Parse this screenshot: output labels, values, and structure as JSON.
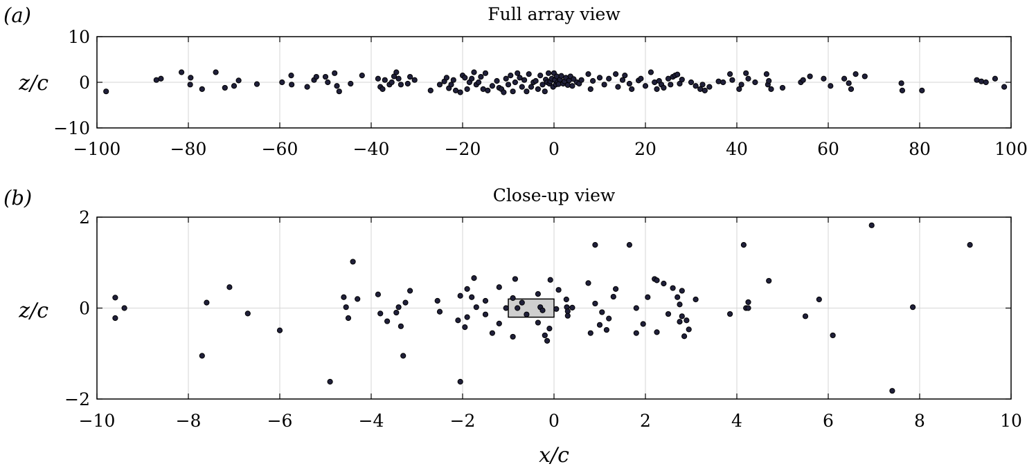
{
  "chart_data": [
    {
      "type": "scatter",
      "panel_label": "(a)",
      "title": "Full array view",
      "xlabel": "",
      "ylabel": "z/c",
      "xlim": [
        -100,
        100
      ],
      "ylim": [
        -10,
        10
      ],
      "x_ticks": [
        -100,
        -80,
        -60,
        -40,
        -20,
        0,
        20,
        40,
        60,
        80,
        100
      ],
      "y_ticks": [
        -10,
        0,
        10
      ],
      "x_tick_labels": [
        "−100",
        "−80",
        "−60",
        "−40",
        "−20",
        "0",
        "20",
        "40",
        "60",
        "80",
        "100"
      ],
      "y_tick_labels": [
        "−10",
        "0",
        "10"
      ],
      "grid": true,
      "point_color": "#20203a",
      "points": [
        [
          -98,
          -2
        ],
        [
          -87,
          0.5
        ],
        [
          -86,
          0.8
        ],
        [
          -81.5,
          2.2
        ],
        [
          -79.5,
          1
        ],
        [
          -79.6,
          -0.5
        ],
        [
          -77,
          -1.5
        ],
        [
          -74,
          2.2
        ],
        [
          -72,
          -1.2
        ],
        [
          -70,
          -0.8
        ],
        [
          -69,
          0.4
        ],
        [
          -65,
          -0.4
        ],
        [
          -59.5,
          0
        ],
        [
          -57.5,
          1.5
        ],
        [
          -57.4,
          -0.5
        ],
        [
          -54,
          -1
        ],
        [
          -52.5,
          0.5
        ],
        [
          -52,
          1.2
        ],
        [
          -50,
          1.2
        ],
        [
          -49.5,
          0
        ],
        [
          -48,
          2
        ],
        [
          -47.5,
          -0.8
        ],
        [
          -47,
          -2
        ],
        [
          -44.5,
          -0.3
        ],
        [
          -42,
          1.5
        ],
        [
          -38.5,
          0.8
        ],
        [
          -38,
          -1
        ],
        [
          -37.5,
          -1.5
        ],
        [
          -37,
          0.5
        ],
        [
          -36,
          -0.5
        ],
        [
          -35.5,
          0
        ],
        [
          -35,
          1.3
        ],
        [
          -34.5,
          2.2
        ],
        [
          -34,
          0.8
        ],
        [
          -33.5,
          -0.5
        ],
        [
          -32,
          -0.3
        ],
        [
          -31.5,
          1.2
        ],
        [
          -30.5,
          0.5
        ],
        [
          -27,
          -1.8
        ],
        [
          -25,
          -0.5
        ],
        [
          -24,
          0.2
        ],
        [
          -23.5,
          1
        ],
        [
          -23,
          -1.3
        ],
        [
          -22.5,
          -0.5
        ],
        [
          -22,
          0.5
        ],
        [
          -21.5,
          -1.8
        ],
        [
          -20.5,
          -2.2
        ],
        [
          -20,
          1.5
        ],
        [
          -19.5,
          1
        ],
        [
          -19,
          -1.5
        ],
        [
          -18.5,
          0
        ],
        [
          -18,
          0.8
        ],
        [
          -17.5,
          2.2
        ],
        [
          -17,
          -0.5
        ],
        [
          -16.5,
          0
        ],
        [
          -16,
          1.2
        ],
        [
          -15.5,
          -1.5
        ],
        [
          -15,
          2
        ],
        [
          -14.5,
          -1.8
        ],
        [
          -13.5,
          -0.8
        ],
        [
          -12.5,
          0.3
        ],
        [
          -12,
          -1.2
        ],
        [
          -11.5,
          -1.5
        ],
        [
          -11,
          -2.2
        ],
        [
          -10.5,
          0.8
        ],
        [
          -10,
          -0.5
        ],
        [
          -9.5,
          1.5
        ],
        [
          -9,
          -2
        ],
        [
          -8.5,
          0
        ],
        [
          -8,
          2
        ],
        [
          -7.5,
          1
        ],
        [
          -7,
          -1
        ],
        [
          -6.5,
          0.5
        ],
        [
          -6,
          -2
        ],
        [
          -5.5,
          1.8
        ],
        [
          -5,
          -1
        ],
        [
          -4.5,
          0
        ],
        [
          -4,
          0.3
        ],
        [
          -3.5,
          -1.5
        ],
        [
          -3,
          1.5
        ],
        [
          -2.5,
          -0.5
        ],
        [
          -2,
          -2
        ],
        [
          -1.8,
          0.6
        ],
        [
          -1.5,
          0
        ],
        [
          -1.2,
          2
        ],
        [
          -1,
          -0.3
        ],
        [
          -0.8,
          0.2
        ],
        [
          -0.5,
          0.8
        ],
        [
          -0.2,
          -1
        ],
        [
          0,
          2
        ],
        [
          0.2,
          0.5
        ],
        [
          0.4,
          -0.5
        ],
        [
          0.6,
          1.3
        ],
        [
          0.8,
          0
        ],
        [
          1,
          -0.4
        ],
        [
          1.3,
          0.6
        ],
        [
          1.6,
          1.4
        ],
        [
          2,
          -0.3
        ],
        [
          2.3,
          0.2
        ],
        [
          2.6,
          1
        ],
        [
          3,
          -0.6
        ],
        [
          3.3,
          0.4
        ],
        [
          3.6,
          1.3
        ],
        [
          4,
          -0.8
        ],
        [
          4.3,
          0.7
        ],
        [
          5,
          0
        ],
        [
          5.5,
          -0.3
        ],
        [
          6,
          0.5
        ],
        [
          7.5,
          1.8
        ],
        [
          8,
          -1.5
        ],
        [
          8.5,
          0.3
        ],
        [
          10,
          1
        ],
        [
          11,
          -0.5
        ],
        [
          12,
          0.8
        ],
        [
          13.5,
          1.8
        ],
        [
          14,
          -1
        ],
        [
          15,
          0.5
        ],
        [
          15.5,
          1.5
        ],
        [
          16.5,
          -0.3
        ],
        [
          17,
          -1.5
        ],
        [
          18.5,
          0.4
        ],
        [
          19,
          0.8
        ],
        [
          20,
          -0.8
        ],
        [
          21.2,
          2.2
        ],
        [
          22,
          0
        ],
        [
          22.5,
          -1.5
        ],
        [
          23,
          0.3
        ],
        [
          23.5,
          -0.5
        ],
        [
          24,
          -1.2
        ],
        [
          25,
          0.8
        ],
        [
          25.5,
          -0.5
        ],
        [
          26,
          1.2
        ],
        [
          26.5,
          1.5
        ],
        [
          27,
          1.7
        ],
        [
          27.5,
          -0.3
        ],
        [
          28,
          0.6
        ],
        [
          30,
          0
        ],
        [
          31,
          -0.8
        ],
        [
          32,
          -1.5
        ],
        [
          32.5,
          -0.5
        ],
        [
          33,
          -1.8
        ],
        [
          34,
          -1
        ],
        [
          36,
          0.2
        ],
        [
          37,
          0
        ],
        [
          38.5,
          1.8
        ],
        [
          39,
          0.5
        ],
        [
          40.5,
          -1.5
        ],
        [
          41,
          -0.5
        ],
        [
          42,
          2
        ],
        [
          42.5,
          0.8
        ],
        [
          44,
          0
        ],
        [
          46.5,
          1.8
        ],
        [
          46.8,
          -0.5
        ],
        [
          47,
          0.3
        ],
        [
          47.5,
          -1.5
        ],
        [
          50,
          -1.2
        ],
        [
          54,
          0
        ],
        [
          54.5,
          0.5
        ],
        [
          56,
          1.3
        ],
        [
          59,
          0.8
        ],
        [
          60.5,
          -0.8
        ],
        [
          63.5,
          0.8
        ],
        [
          64.5,
          -0.2
        ],
        [
          65,
          -1.5
        ],
        [
          66,
          1.8
        ],
        [
          68,
          1.3
        ],
        [
          76,
          -0.2
        ],
        [
          76.2,
          -1.8
        ],
        [
          80.5,
          -1.8
        ],
        [
          92.5,
          0.5
        ],
        [
          93.5,
          0.2
        ],
        [
          94.5,
          0
        ],
        [
          96.5,
          0.8
        ],
        [
          98.5,
          -1
        ]
      ]
    },
    {
      "type": "scatter",
      "panel_label": "(b)",
      "title": "Close-up view",
      "xlabel": "x/c",
      "ylabel": "z/c",
      "xlim": [
        -10,
        10
      ],
      "ylim": [
        -2,
        2
      ],
      "x_ticks": [
        -10,
        -8,
        -6,
        -4,
        -2,
        0,
        2,
        4,
        6,
        8,
        10
      ],
      "y_ticks": [
        -2,
        0,
        2
      ],
      "x_tick_labels": [
        "−10",
        "−8",
        "−6",
        "−4",
        "−2",
        "0",
        "2",
        "4",
        "6",
        "8",
        "10"
      ],
      "y_tick_labels": [
        "−2",
        "0",
        "2"
      ],
      "grid": true,
      "point_color": "#20203a",
      "airfoil_box": {
        "x": [
          -1,
          0
        ],
        "z": [
          -0.2,
          0.2
        ],
        "color": "#cfcfcf"
      },
      "points": [
        [
          -9.6,
          0.23
        ],
        [
          -9.6,
          -0.22
        ],
        [
          -9.4,
          0
        ],
        [
          -7.7,
          -1.05
        ],
        [
          -7.6,
          0.12
        ],
        [
          -7.1,
          0.46
        ],
        [
          -6.7,
          -0.12
        ],
        [
          -6.0,
          -0.49
        ],
        [
          -4.9,
          -1.62
        ],
        [
          -4.6,
          0.24
        ],
        [
          -4.55,
          0.02
        ],
        [
          -4.5,
          -0.22
        ],
        [
          -4.4,
          1.02
        ],
        [
          -4.3,
          0.2
        ],
        [
          -3.85,
          0.3
        ],
        [
          -3.8,
          -0.12
        ],
        [
          -3.65,
          -0.29
        ],
        [
          -3.45,
          -0.1
        ],
        [
          -3.4,
          0.02
        ],
        [
          -3.35,
          -0.4
        ],
        [
          -3.3,
          -1.05
        ],
        [
          -3.25,
          0.12
        ],
        [
          -3.15,
          0.38
        ],
        [
          -2.55,
          0.16
        ],
        [
          -2.5,
          -0.08
        ],
        [
          -2.1,
          -0.27
        ],
        [
          -2.05,
          0.27
        ],
        [
          -2.05,
          -1.62
        ],
        [
          -1.95,
          -0.42
        ],
        [
          -1.9,
          0.42
        ],
        [
          -1.9,
          -0.2
        ],
        [
          -1.8,
          0.24
        ],
        [
          -1.75,
          0.66
        ],
        [
          -1.7,
          0.02
        ],
        [
          -1.5,
          0.16
        ],
        [
          -1.5,
          -0.14
        ],
        [
          -1.35,
          -0.55
        ],
        [
          -1.2,
          -0.34
        ],
        [
          -1.2,
          0.46
        ],
        [
          -1.05,
          0
        ],
        [
          -0.9,
          0.22
        ],
        [
          -0.9,
          -0.63
        ],
        [
          -0.85,
          0.64
        ],
        [
          -0.8,
          0
        ],
        [
          -0.7,
          0.12
        ],
        [
          -0.6,
          -0.14
        ],
        [
          -0.35,
          0.31
        ],
        [
          -0.35,
          -0.32
        ],
        [
          -0.3,
          0.02
        ],
        [
          -0.25,
          -0.05
        ],
        [
          -0.2,
          -0.6
        ],
        [
          -0.15,
          -0.72
        ],
        [
          -0.1,
          -0.45
        ],
        [
          -0.08,
          0.62
        ],
        [
          0.05,
          -0.02
        ],
        [
          0.1,
          0.4
        ],
        [
          0.27,
          0.19
        ],
        [
          0.28,
          0.02
        ],
        [
          0.3,
          -0.07
        ],
        [
          0.3,
          -0.17
        ],
        [
          0.4,
          0.01
        ],
        [
          0.75,
          0.55
        ],
        [
          0.8,
          -0.55
        ],
        [
          0.9,
          1.39
        ],
        [
          0.9,
          0.1
        ],
        [
          1.0,
          -0.37
        ],
        [
          1.05,
          -0.09
        ],
        [
          1.15,
          -0.48
        ],
        [
          1.2,
          -0.23
        ],
        [
          1.3,
          0.25
        ],
        [
          1.35,
          0.42
        ],
        [
          1.65,
          1.39
        ],
        [
          1.8,
          0
        ],
        [
          1.8,
          -0.55
        ],
        [
          1.95,
          -0.35
        ],
        [
          2.05,
          0.24
        ],
        [
          2.2,
          0.64
        ],
        [
          2.25,
          0.61
        ],
        [
          2.25,
          -0.53
        ],
        [
          2.4,
          0.54
        ],
        [
          2.5,
          -0.13
        ],
        [
          2.6,
          0.44
        ],
        [
          2.7,
          0.24
        ],
        [
          2.75,
          0.08
        ],
        [
          2.75,
          -0.3
        ],
        [
          2.8,
          0.38
        ],
        [
          2.8,
          -0.18
        ],
        [
          2.85,
          -0.62
        ],
        [
          2.9,
          -0.27
        ],
        [
          2.95,
          -0.47
        ],
        [
          3.1,
          0.19
        ],
        [
          3.85,
          -0.13
        ],
        [
          4.15,
          1.39
        ],
        [
          4.2,
          0
        ],
        [
          4.25,
          0
        ],
        [
          4.25,
          0.13
        ],
        [
          4.7,
          0.6
        ],
        [
          5.5,
          -0.18
        ],
        [
          5.8,
          0.19
        ],
        [
          6.1,
          -0.6
        ],
        [
          6.95,
          1.82
        ],
        [
          7.4,
          -1.82
        ],
        [
          7.85,
          0.02
        ],
        [
          9.1,
          1.39
        ]
      ]
    }
  ]
}
